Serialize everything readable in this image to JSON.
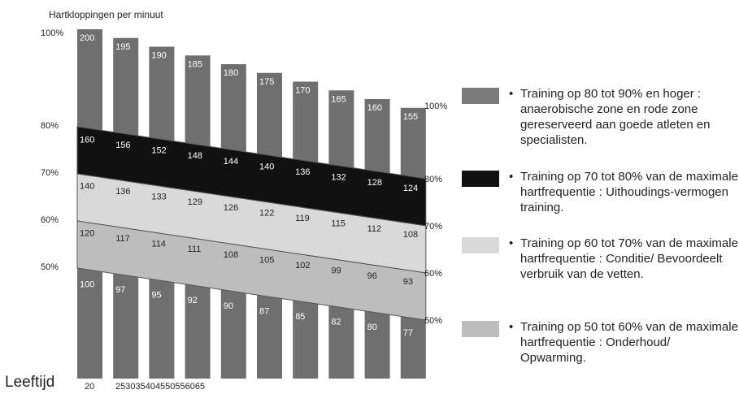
{
  "chart_data": {
    "type": "bar",
    "title": "Hartkloppingen per minuut",
    "xlabel": "Leeftijd",
    "age_labels": [
      "20",
      "25",
      "30",
      "35",
      "40",
      "45",
      "50",
      "55",
      "60",
      "65"
    ],
    "ylim": [
      0,
      200
    ],
    "max_heart_rate": [
      200,
      195,
      190,
      185,
      180,
      175,
      170,
      165,
      160,
      155
    ],
    "zones": [
      {
        "name": "Training op 80 tot 90% en hoger",
        "lower_pct": 80,
        "upper_pct": 100,
        "color": "#7a7a7a",
        "label_values": [
          200,
          195,
          190,
          185,
          180,
          175,
          170,
          165,
          160,
          155
        ]
      },
      {
        "name": "Training op 70 tot 80%",
        "lower_pct": 70,
        "upper_pct": 80,
        "color": "#111111",
        "label_values": [
          160,
          156,
          152,
          148,
          144,
          140,
          136,
          132,
          128,
          124
        ]
      },
      {
        "name": "Training op 60 tot 70%",
        "lower_pct": 60,
        "upper_pct": 70,
        "color": "#d9d9d9",
        "label_values": [
          140,
          136,
          133,
          129,
          126,
          122,
          119,
          115,
          112,
          108
        ]
      },
      {
        "name": "Training op 50 tot 60%",
        "lower_pct": 50,
        "upper_pct": 60,
        "color": "#bdbdbd",
        "label_values": [
          120,
          117,
          114,
          111,
          108,
          105,
          102,
          99,
          96,
          93
        ]
      }
    ],
    "below_zone_values": [
      100,
      97,
      95,
      92,
      90,
      87,
      85,
      82,
      80,
      77
    ],
    "left_pct_labels": [
      "100%",
      "80%",
      "70%",
      "60%",
      "50%"
    ],
    "right_pct_labels": [
      "100%",
      "80%",
      "70%",
      "60%",
      "50%"
    ],
    "bar_color": "#6f6f6f",
    "legend_position": "right"
  },
  "legend": [
    {
      "color": "#7a7a7a",
      "text": "Training op 80 tot 90% en hoger : anaerobische zone en rode zone gereserveerd aan goede atleten en specialisten."
    },
    {
      "color": "#111111",
      "text": "Training op 70 tot 80% van de maximale hartfrequentie : Uithoudings-vermogen training."
    },
    {
      "color": "#d9d9d9",
      "text": "Training op 60 tot 70% van de maximale hartfrequentie : Conditie/ Bevoordeelt verbruik van de vetten."
    },
    {
      "color": "#bdbdbd",
      "text": "Training op 50 tot 60% van de maximale hartfrequentie : Onderhoud/ Opwarming."
    }
  ]
}
